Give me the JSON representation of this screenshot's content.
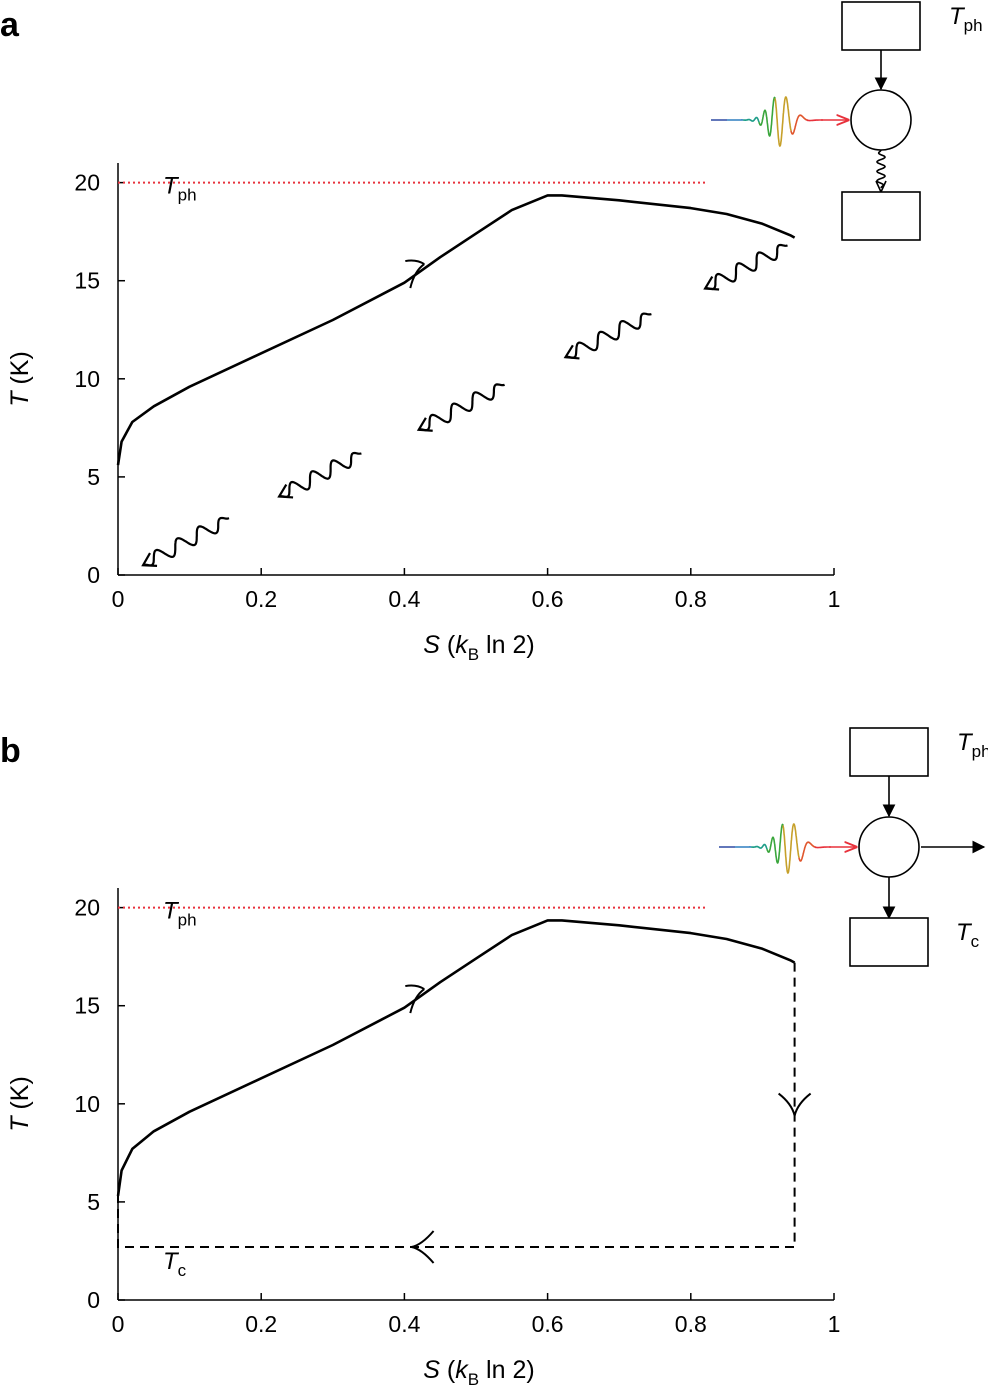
{
  "chart_data": [
    {
      "panel_label": "a",
      "type": "line",
      "xlabel": {
        "main": "S",
        "paren_open": " (",
        "k": "k",
        "k_sub": "B",
        "rest": " ln 2)"
      },
      "ylabel": {
        "main": "T",
        "rest": " (K)"
      },
      "xlim": [
        0,
        1
      ],
      "ylim": [
        0,
        21
      ],
      "xticks": [
        0,
        0.2,
        0.4,
        0.6,
        0.8,
        1
      ],
      "xtick_labels": [
        "0",
        "0.2",
        "0.4",
        "0.6",
        "0.8",
        "1"
      ],
      "yticks": [
        0,
        5,
        10,
        15,
        20
      ],
      "ytick_labels": [
        "0",
        "5",
        "10",
        "15",
        "20"
      ],
      "grid": false,
      "reference_line": {
        "y": 20,
        "x_end": 0.82,
        "color": "#e8323c",
        "label_main": "T",
        "label_sub": "ph"
      },
      "cycle_curve": {
        "x": [
          0,
          0.005,
          0.02,
          0.05,
          0.1,
          0.2,
          0.3,
          0.4,
          0.45,
          0.5,
          0.55,
          0.6,
          0.62,
          0.7,
          0.8,
          0.85,
          0.9,
          0.92,
          0.94,
          0.945
        ],
        "y": [
          5.6,
          6.8,
          7.8,
          8.6,
          9.6,
          11.3,
          13.0,
          14.9,
          16.2,
          17.4,
          18.6,
          19.35,
          19.35,
          19.1,
          18.7,
          18.4,
          17.9,
          17.6,
          17.3,
          17.2
        ]
      },
      "direction_arrows": [
        {
          "x": 0.425,
          "y": 15.9,
          "dir": "up-right"
        }
      ],
      "heat_emission_wiggles": [
        {
          "x0": 0.155,
          "y0": 2.9,
          "x1": 0.035,
          "y1": 0.5
        },
        {
          "x0": 0.34,
          "y0": 6.2,
          "x1": 0.225,
          "y1": 4.0
        },
        {
          "x0": 0.54,
          "y0": 9.7,
          "x1": 0.42,
          "y1": 7.4
        },
        {
          "x0": 0.745,
          "y0": 13.3,
          "x1": 0.625,
          "y1": 11.1
        },
        {
          "x0": 0.935,
          "y0": 16.8,
          "x1": 0.82,
          "y1": 14.6
        }
      ],
      "inset": {
        "label_hot_main": "T",
        "label_hot_sub": "ph",
        "photon_colors": [
          "#3b55a8",
          "#2f7fc1",
          "#1f9e89",
          "#3aa63c",
          "#c6a02a",
          "#e0562d",
          "#e8323c"
        ],
        "output_arrow": false
      }
    },
    {
      "panel_label": "b",
      "type": "line",
      "xlabel": {
        "main": "S",
        "paren_open": " (",
        "k": "k",
        "k_sub": "B",
        "rest": " ln 2)"
      },
      "ylabel": {
        "main": "T",
        "rest": " (K)"
      },
      "xlim": [
        0,
        1
      ],
      "ylim": [
        0,
        21
      ],
      "xticks": [
        0,
        0.2,
        0.4,
        0.6,
        0.8,
        1
      ],
      "xtick_labels": [
        "0",
        "0.2",
        "0.4",
        "0.6",
        "0.8",
        "1"
      ],
      "yticks": [
        0,
        5,
        10,
        15,
        20
      ],
      "ytick_labels": [
        "0",
        "5",
        "10",
        "15",
        "20"
      ],
      "grid": false,
      "reference_line": {
        "y": 20,
        "x_end": 0.82,
        "color": "#e8323c",
        "label_main": "T",
        "label_sub": "ph"
      },
      "cold_level": {
        "y": 2.7,
        "label_main": "T",
        "label_sub": "c"
      },
      "cycle_curve": {
        "x": [
          0,
          0.005,
          0.02,
          0.05,
          0.1,
          0.2,
          0.3,
          0.4,
          0.45,
          0.5,
          0.55,
          0.6,
          0.62,
          0.7,
          0.8,
          0.85,
          0.9,
          0.92,
          0.94,
          0.945
        ],
        "y": [
          5.3,
          6.6,
          7.7,
          8.6,
          9.6,
          11.3,
          13.0,
          14.9,
          16.2,
          17.4,
          18.6,
          19.35,
          19.35,
          19.1,
          18.7,
          18.4,
          17.9,
          17.6,
          17.3,
          17.2
        ]
      },
      "dashed_path": {
        "x": [
          0.945,
          0.945,
          0,
          0
        ],
        "y": [
          17.2,
          2.7,
          2.7,
          5.3
        ]
      },
      "direction_arrows": [
        {
          "x": 0.425,
          "y": 15.9,
          "dir": "up-right"
        },
        {
          "x": 0.945,
          "y": 9.4,
          "dir": "down"
        },
        {
          "x": 0.41,
          "y": 2.7,
          "dir": "left"
        }
      ],
      "inset": {
        "label_hot_main": "T",
        "label_hot_sub": "ph",
        "label_cold_main": "T",
        "label_cold_sub": "c",
        "photon_colors": [
          "#3b55a8",
          "#2f7fc1",
          "#1f9e89",
          "#3aa63c",
          "#c6a02a",
          "#e0562d",
          "#e8323c"
        ],
        "output_arrow": true
      }
    }
  ]
}
